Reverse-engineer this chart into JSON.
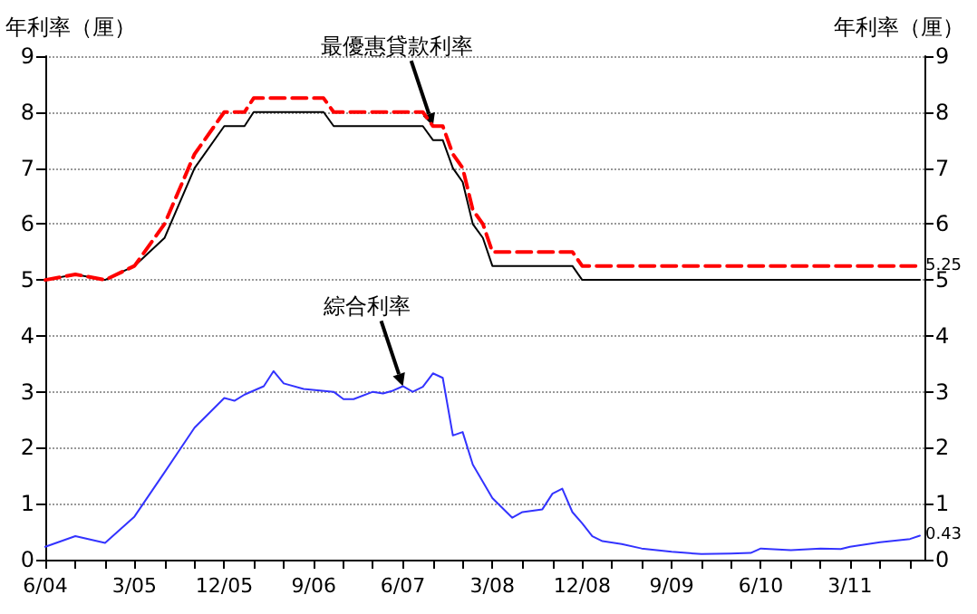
{
  "chart_data": {
    "type": "line",
    "ylabel": "年利率（厘）",
    "y2label": "年利率（厘）",
    "xlim": [
      "2004-06",
      "2011-10-15"
    ],
    "xticks": [
      {
        "value": "2004-06",
        "label": "6/04"
      },
      {
        "value": "2004-09",
        "label": null
      },
      {
        "value": "2004-12",
        "label": null
      },
      {
        "value": "2005-03",
        "label": "3/05"
      },
      {
        "value": "2005-06",
        "label": null
      },
      {
        "value": "2005-09",
        "label": null
      },
      {
        "value": "2005-12",
        "label": "12/05"
      },
      {
        "value": "2006-03",
        "label": null
      },
      {
        "value": "2006-06",
        "label": null
      },
      {
        "value": "2006-09",
        "label": "9/06"
      },
      {
        "value": "2006-12",
        "label": null
      },
      {
        "value": "2007-03",
        "label": null
      },
      {
        "value": "2007-06",
        "label": "6/07"
      },
      {
        "value": "2007-09",
        "label": null
      },
      {
        "value": "2007-12",
        "label": null
      },
      {
        "value": "2008-03",
        "label": "3/08"
      },
      {
        "value": "2008-06",
        "label": null
      },
      {
        "value": "2008-09",
        "label": null
      },
      {
        "value": "2008-12",
        "label": "12/08"
      },
      {
        "value": "2009-03",
        "label": null
      },
      {
        "value": "2009-06",
        "label": null
      },
      {
        "value": "2009-09",
        "label": "9/09"
      },
      {
        "value": "2009-12",
        "label": null
      },
      {
        "value": "2010-03",
        "label": null
      },
      {
        "value": "2010-06",
        "label": "6/10"
      },
      {
        "value": "2010-09",
        "label": null
      },
      {
        "value": "2010-12",
        "label": null
      },
      {
        "value": "2011-03",
        "label": "3/11"
      },
      {
        "value": "2011-06",
        "label": null
      },
      {
        "value": "2011-09",
        "label": null
      }
    ],
    "ylim": [
      0,
      9
    ],
    "yticks": [
      0,
      1,
      2,
      3,
      4,
      5,
      6,
      7,
      8,
      9
    ],
    "y2lim": [
      0,
      9
    ],
    "y2ticks": [
      0,
      1,
      2,
      3,
      4,
      5,
      6,
      7,
      8,
      9
    ],
    "grid": "y",
    "marker": "none",
    "series": [
      {
        "color": "#000000",
        "line_style": "solid",
        "x": [
          "2004-06",
          "2004-09",
          "2004-12",
          "2005-03",
          "2005-06",
          "2005-09",
          "2005-12",
          "2006-02",
          "2006-03",
          "2006-10",
          "2006-11",
          "2007-08",
          "2007-09",
          "2007-10",
          "2007-11",
          "2007-12",
          "2008-01",
          "2008-02",
          "2008-03",
          "2008-11",
          "2008-12",
          "2011-10"
        ],
        "values": [
          5.0,
          5.1,
          5.0,
          5.25,
          5.75,
          7.0,
          7.75,
          7.75,
          8.0,
          8.0,
          7.75,
          7.75,
          7.5,
          7.5,
          7.0,
          6.75,
          6.0,
          5.75,
          5.25,
          5.25,
          5.0,
          5.0
        ]
      },
      {
        "color": "#ff0000",
        "line_style": "dashed",
        "x": [
          "2004-06",
          "2004-09",
          "2004-12",
          "2005-03",
          "2005-06",
          "2005-09",
          "2005-12",
          "2006-02",
          "2006-03",
          "2006-10",
          "2006-11",
          "2007-08",
          "2007-09",
          "2007-10",
          "2007-11",
          "2007-12",
          "2008-01",
          "2008-02",
          "2008-03",
          "2008-11",
          "2008-12",
          "2011-10"
        ],
        "values": [
          5.0,
          5.1,
          5.0,
          5.25,
          6.0,
          7.25,
          8.0,
          8.0,
          8.25,
          8.25,
          8.0,
          8.0,
          7.75,
          7.75,
          7.25,
          7.0,
          6.25,
          6.0,
          5.5,
          5.5,
          5.25,
          5.25
        ],
        "value_labels": [
          null,
          null,
          null,
          null,
          null,
          null,
          null,
          null,
          null,
          null,
          null,
          null,
          null,
          null,
          null,
          null,
          null,
          null,
          null,
          null,
          null,
          "5.25"
        ]
      },
      {
        "color": "#3333ff",
        "line_style": "solid",
        "x": [
          "2004-06",
          "2004-09",
          "2004-12",
          "2005-03",
          "2005-06",
          "2005-09",
          "2005-12",
          "2006-01",
          "2006-02",
          "2006-04",
          "2006-05",
          "2006-06",
          "2006-08",
          "2006-11",
          "2006-12",
          "2007-01",
          "2007-03",
          "2007-04",
          "2007-05",
          "2007-06",
          "2007-07",
          "2007-08",
          "2007-09",
          "2007-10",
          "2007-11",
          "2007-12",
          "2008-01",
          "2008-03",
          "2008-05",
          "2008-06",
          "2008-08",
          "2008-09",
          "2008-10",
          "2008-11",
          "2008-12",
          "2009-01",
          "2009-02",
          "2009-04",
          "2009-06",
          "2009-09",
          "2009-12",
          "2010-03",
          "2010-05",
          "2010-06",
          "2010-09",
          "2010-12",
          "2011-02",
          "2011-03",
          "2011-06",
          "2011-09",
          "2011-10"
        ],
        "values": [
          0.23,
          0.42,
          0.3,
          0.77,
          1.56,
          2.36,
          2.89,
          2.84,
          2.95,
          3.1,
          3.37,
          3.15,
          3.05,
          3.0,
          2.87,
          2.87,
          3.0,
          2.97,
          3.02,
          3.1,
          3.0,
          3.09,
          3.33,
          3.25,
          2.22,
          2.28,
          1.7,
          1.1,
          0.75,
          0.85,
          0.9,
          1.18,
          1.27,
          0.85,
          0.65,
          0.42,
          0.33,
          0.28,
          0.2,
          0.14,
          0.1,
          0.11,
          0.12,
          0.2,
          0.17,
          0.2,
          0.19,
          0.23,
          0.31,
          0.37,
          0.43
        ],
        "value_labels": [
          null,
          null,
          null,
          null,
          null,
          null,
          null,
          null,
          null,
          null,
          null,
          null,
          null,
          null,
          null,
          null,
          null,
          null,
          null,
          null,
          null,
          null,
          null,
          null,
          null,
          null,
          null,
          null,
          null,
          null,
          null,
          null,
          null,
          null,
          null,
          null,
          null,
          null,
          null,
          null,
          null,
          null,
          null,
          null,
          null,
          null,
          null,
          null,
          null,
          null,
          "0.43"
        ]
      }
    ],
    "annotations": [
      {
        "text": "最優惠貸款利率",
        "x": "2007-09",
        "y": 7.75
      },
      {
        "text": "綜合利率",
        "x": "2007-06",
        "y": 3.1
      }
    ]
  }
}
